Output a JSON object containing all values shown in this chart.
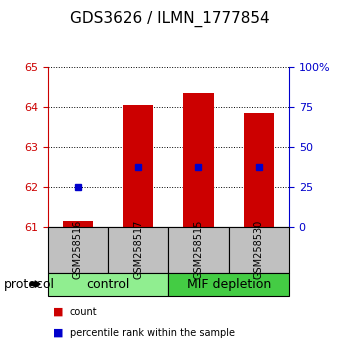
{
  "title": "GDS3626 / ILMN_1777854",
  "samples": [
    "GSM258516",
    "GSM258517",
    "GSM258515",
    "GSM258530"
  ],
  "bar_bottoms": [
    61.0,
    61.0,
    61.0,
    61.0
  ],
  "bar_tops": [
    61.15,
    64.05,
    64.35,
    63.85
  ],
  "blue_dots": [
    62.0,
    62.5,
    62.5,
    62.5
  ],
  "bar_color": "#cc0000",
  "dot_color": "#0000cc",
  "ylim_left": [
    61.0,
    65.0
  ],
  "ylim_right": [
    0,
    100
  ],
  "yticks_left": [
    61,
    62,
    63,
    64,
    65
  ],
  "yticks_right": [
    0,
    25,
    50,
    75,
    100
  ],
  "ytick_labels_right": [
    "0",
    "25",
    "50",
    "75",
    "100%"
  ],
  "groups": [
    {
      "label": "control",
      "cols": [
        0,
        1
      ],
      "color": "#90ee90"
    },
    {
      "label": "MIF depletion",
      "cols": [
        2,
        3
      ],
      "color": "#44cc44"
    }
  ],
  "protocol_label": "protocol",
  "legend_items": [
    {
      "label": "count",
      "color": "#cc0000"
    },
    {
      "label": "percentile rank within the sample",
      "color": "#0000cc"
    }
  ],
  "bar_width": 0.5,
  "tick_color_left": "#cc0000",
  "tick_color_right": "#0000cc",
  "grid_color": "#000000",
  "sample_box_color": "#c0c0c0",
  "sample_box_edge": "#000000",
  "background_color": "#ffffff",
  "title_fontsize": 11,
  "axis_fontsize": 8,
  "label_fontsize": 8,
  "group_label_fontsize": 9,
  "protocol_fontsize": 9
}
